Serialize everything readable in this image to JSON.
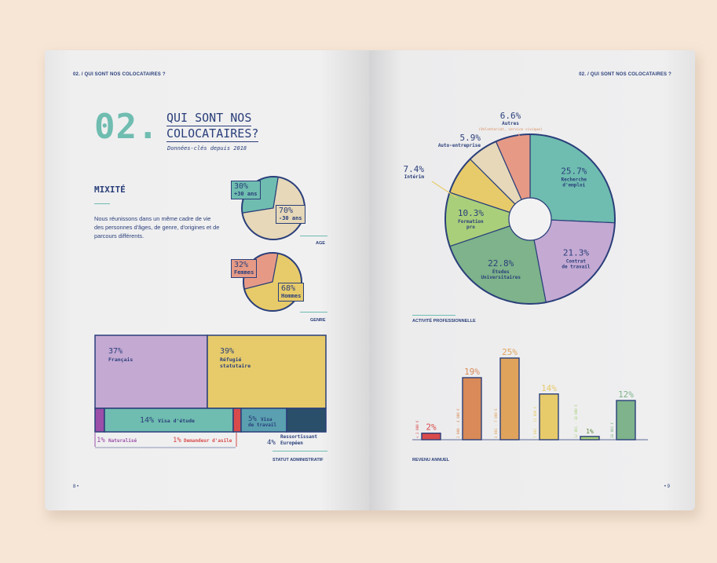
{
  "header": {
    "left": "02. / QUI SONT NOS COLOCATAIRES ?",
    "right": "02. / QUI SONT NOS COLOCATAIRES ?"
  },
  "intro": {
    "number": "02.",
    "title_line1": "QUI SONT NOS",
    "title_line2": "COLOCATAIRES?",
    "subtitle": "Données-clés depuis 2018"
  },
  "mixite": {
    "title": "MIXITÉ",
    "text": "Nous réunissons dans un même cadre de vie des personnes d'âges, de genre, d'origines et de parcours différents."
  },
  "page_numbers": {
    "left": "8 •",
    "right": "• 9"
  },
  "colors": {
    "navy": "#2a3f7a",
    "teal": "#6fbdb0",
    "sand": "#e6d8b8",
    "yellow": "#e7cb6a",
    "lilac": "#c4a9d3",
    "salmon": "#e69a86",
    "green": "#7eb38b",
    "orange": "#d98a58",
    "red": "#d94a4a"
  },
  "chart_data": [
    {
      "type": "pie",
      "caption": "AGE",
      "slices": [
        {
          "label": "+30 ans",
          "value": 30,
          "pct": "30%",
          "color": "#6fbdb0"
        },
        {
          "label": "-30 ans",
          "value": 70,
          "pct": "70%",
          "color": "#e6d8b8"
        }
      ]
    },
    {
      "type": "pie",
      "caption": "GENRE",
      "slices": [
        {
          "label": "Femmes",
          "value": 32,
          "pct": "32%",
          "color": "#e69a86"
        },
        {
          "label": "Hommes",
          "value": 68,
          "pct": "68%",
          "color": "#e7cb6a"
        }
      ]
    },
    {
      "type": "table",
      "caption": "STATUT ADMINISTRATIF",
      "items": [
        {
          "label": "Français",
          "value": 37,
          "pct": "37%",
          "color": "#c4a9d3"
        },
        {
          "label": "Réfugié statutaire",
          "value": 39,
          "pct": "39%",
          "color": "#e7cb6a"
        },
        {
          "label": "Naturalisé",
          "value": 1,
          "pct": "1%",
          "color": "#9b4fa8"
        },
        {
          "label": "Visa d'étude",
          "value": 14,
          "pct": "14%",
          "color": "#6fbdb0"
        },
        {
          "label": "Demandeur d'asile",
          "value": 1,
          "pct": "1%",
          "color": "#d94a4a"
        },
        {
          "label": "Visa de travail",
          "value": 5,
          "pct": "5%",
          "color": "#5aa0b0"
        },
        {
          "label": "Ressortissant Européen",
          "value": 4,
          "pct": "4%",
          "color": "#2a4f6a"
        }
      ]
    },
    {
      "type": "pie",
      "caption": "ACTIVITÉ PROFESSIONNELLE",
      "slices": [
        {
          "label": "Recherche d'emploi",
          "value": 25.7,
          "pct": "25.7%",
          "color": "#6fbdb0"
        },
        {
          "label": "Contrat de travail",
          "value": 21.3,
          "pct": "21.3%",
          "color": "#c4a9d3"
        },
        {
          "label": "Études Universitaires",
          "value": 22.8,
          "pct": "22.8%",
          "color": "#7eb38b"
        },
        {
          "label": "Formation pro",
          "value": 10.3,
          "pct": "10.3%",
          "color": "#a9cf7a"
        },
        {
          "label": "Intérim",
          "value": 7.4,
          "pct": "7.4%",
          "color": "#e7cb6a"
        },
        {
          "label": "Auto-entreprise",
          "value": 5.9,
          "pct": "5.9%",
          "color": "#e6d8b8"
        },
        {
          "label": "Autres",
          "sublabel": "(Volontariat, service civique)",
          "value": 6.6,
          "pct": "6.6%",
          "color": "#e69a86"
        }
      ]
    },
    {
      "type": "bar",
      "caption": "REVENU ANNUEL",
      "categories": [
        "< 2 000 €",
        "2 000 - 4 000 €",
        "4 001 - 7 000 €",
        "7 001 - 12 000 €",
        "12 001 - 18 000 €",
        "18 001 €"
      ],
      "values": [
        2,
        19,
        25,
        14,
        1,
        12
      ],
      "labels": [
        "2%",
        "19%",
        "25%",
        "14%",
        "1%",
        "12%"
      ],
      "colors": [
        "#d94a4a",
        "#d98a58",
        "#e0a35c",
        "#e7cb6a",
        "#a9cf7a",
        "#7eb38b"
      ]
    }
  ]
}
